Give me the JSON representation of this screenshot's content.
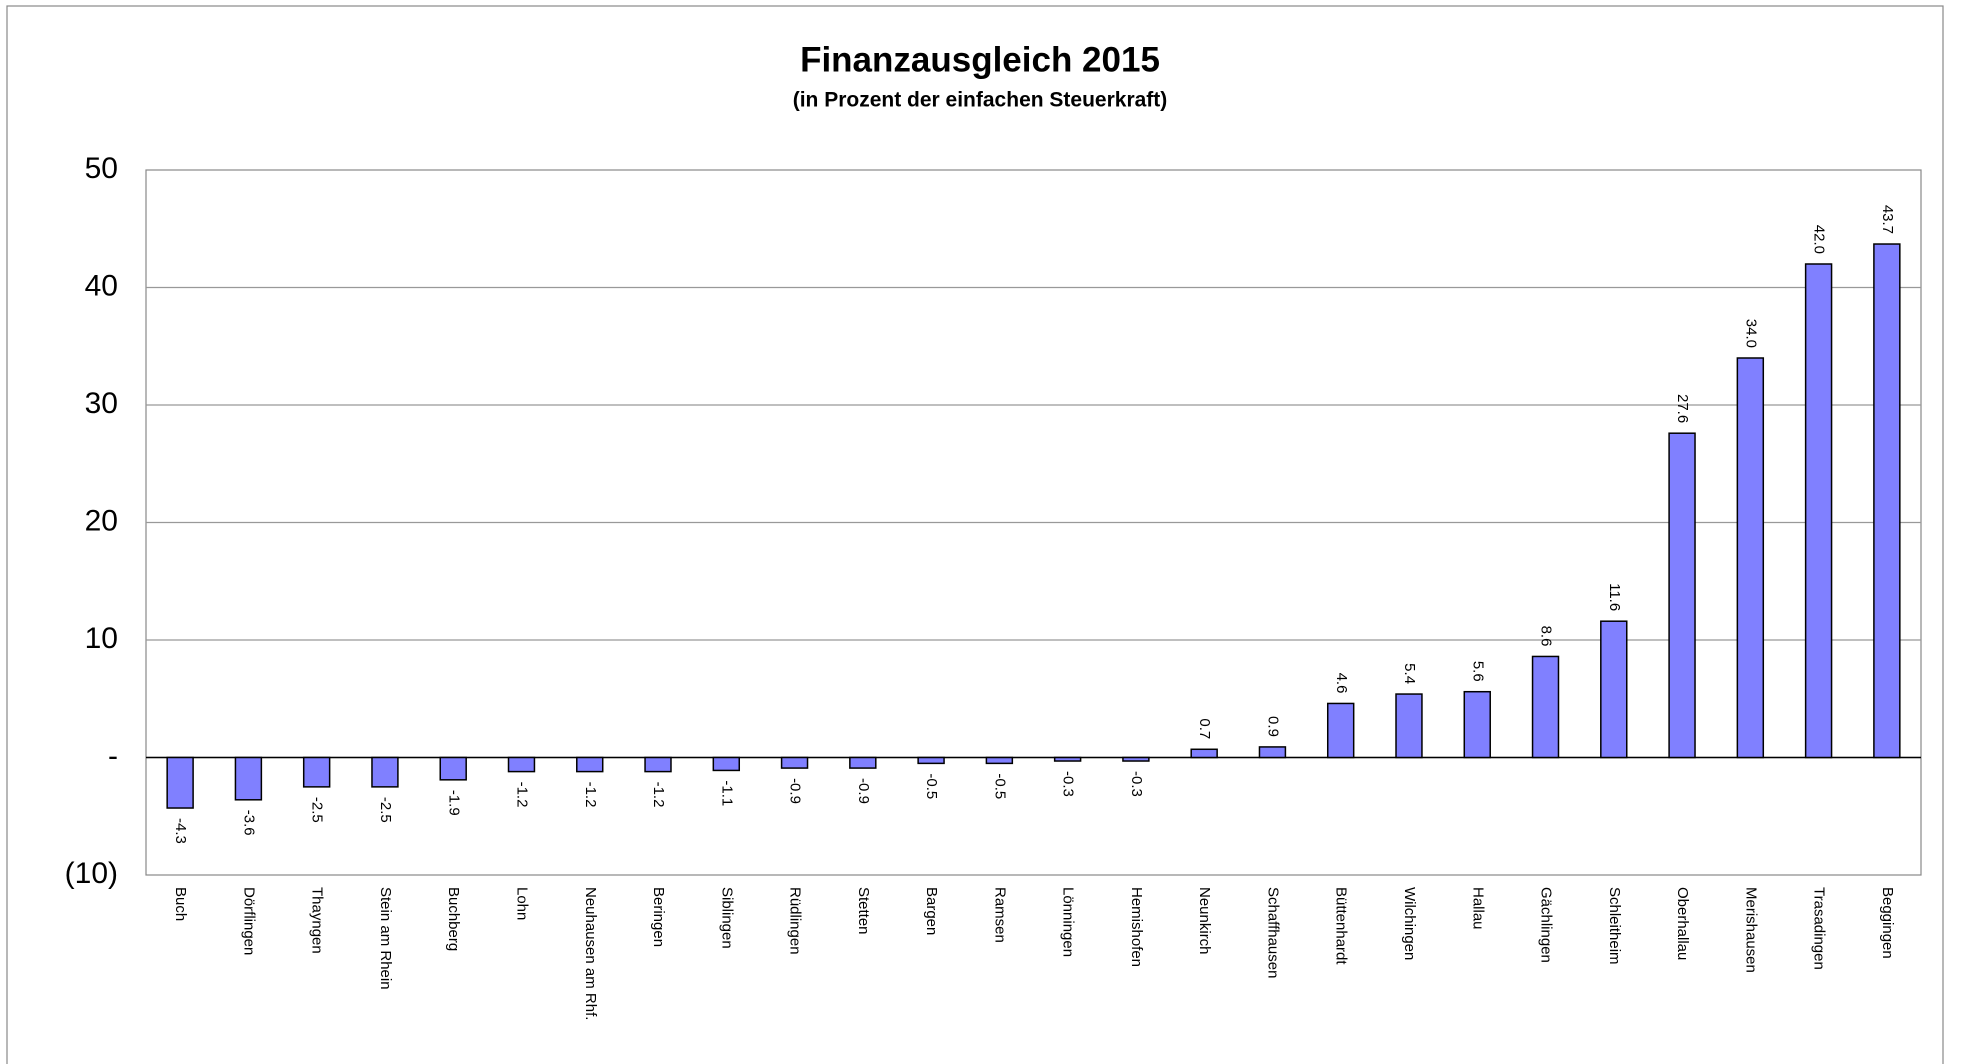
{
  "chart_data": {
    "type": "bar",
    "title": "Finanzausgleich 2015",
    "subtitle": "(in Prozent der einfachen Steuerkraft)",
    "categories": [
      "Buch",
      "Dörflingen",
      "Thayngen",
      "Stein am Rhein",
      "Buchberg",
      "Lohn",
      "Neuhausen am Rhf.",
      "Beringen",
      "Siblingen",
      "Rüdlingen",
      "Stetten",
      "Bargen",
      "Ramsen",
      "Lönningen",
      "Hemishofen",
      "Neunkirch",
      "Schaffhausen",
      "Büttenhardt",
      "Wilchingen",
      "Hallau",
      "Gächlingen",
      "Schleitheim",
      "Oberhallau",
      "Merishausen",
      "Trasadingen",
      "Beggingen"
    ],
    "values": [
      -4.3,
      -3.6,
      -2.5,
      -2.5,
      -1.9,
      -1.2,
      -1.2,
      -1.2,
      -1.1,
      -0.9,
      -0.9,
      -0.5,
      -0.5,
      -0.3,
      -0.3,
      0.7,
      0.9,
      4.6,
      5.4,
      5.6,
      8.6,
      11.6,
      27.6,
      34.0,
      42.0,
      43.7
    ],
    "value_labels": [
      "-4.3",
      "-3.6",
      "-2.5",
      "-2.5",
      "-1.9",
      "-1.2",
      "-1.2",
      "-1.2",
      "-1.1",
      "-0.9",
      "-0.9",
      "-0.5",
      "-0.5",
      "-0.3",
      "-0.3",
      "0.7",
      "0.9",
      "4.6",
      "5.4",
      "5.6",
      "8.6",
      "11.6",
      "27.6",
      "34.0",
      "42.0",
      "43.7"
    ],
    "color": "#8080ff",
    "ylim": [
      -10,
      50
    ],
    "yticks": [
      {
        "value": -10,
        "label": "(10)"
      },
      {
        "value": 0,
        "label": "-"
      },
      10,
      20,
      30,
      40,
      50
    ],
    "grid": true
  }
}
